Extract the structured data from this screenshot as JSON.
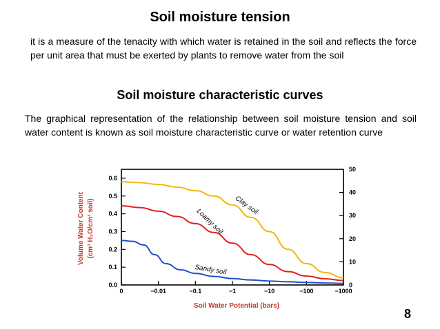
{
  "slide": {
    "title": "Soil moisture tension",
    "paragraph1": "it is a measure of the tenacity with which water is retained in the soil and reflects the force per unit area that must be exerted by plants to remove water from the soil",
    "subtitle": "Soil moisture characteristic curves",
    "paragraph2": "The graphical representation of the relationship between soil moisture tension and soil water content is known as soil moisture characteristic curve or water retention curve",
    "page_number": "8"
  },
  "chart_data": {
    "type": "line",
    "xlabel": "Soil Water Potential (bars)",
    "ylabel_line1": "Volume Water Content",
    "ylabel_line2": "(cm³ H₂O/cm³ soil)",
    "x_ticks": [
      "0",
      "−0.01",
      "−0.1",
      "−1",
      "−10",
      "−100",
      "−1000"
    ],
    "y_ticks": [
      "0.0",
      "0.1",
      "0.2",
      "0.3",
      "0.4",
      "0.5",
      "0.6"
    ],
    "ylim": [
      0,
      0.65
    ],
    "y2_ticks": [
      "0",
      "10",
      "20",
      "30",
      "40",
      "50"
    ],
    "y2lim": [
      0,
      50
    ],
    "x_index_range": [
      0,
      6
    ],
    "grid": false,
    "series": [
      {
        "name": "Clay soil",
        "color": "#f2b705",
        "points": [
          [
            0.0,
            0.58
          ],
          [
            0.5,
            0.575
          ],
          [
            1.0,
            0.565
          ],
          [
            1.5,
            0.55
          ],
          [
            2.0,
            0.53
          ],
          [
            2.5,
            0.5
          ],
          [
            3.0,
            0.45
          ],
          [
            3.5,
            0.38
          ],
          [
            4.0,
            0.3
          ],
          [
            4.5,
            0.2
          ],
          [
            5.0,
            0.12
          ],
          [
            5.5,
            0.07
          ],
          [
            6.0,
            0.04
          ]
        ]
      },
      {
        "name": "Loamy soil",
        "color": "#e02020",
        "points": [
          [
            0.0,
            0.445
          ],
          [
            0.5,
            0.435
          ],
          [
            1.0,
            0.415
          ],
          [
            1.5,
            0.385
          ],
          [
            2.0,
            0.345
          ],
          [
            2.5,
            0.295
          ],
          [
            3.0,
            0.235
          ],
          [
            3.5,
            0.17
          ],
          [
            4.0,
            0.115
          ],
          [
            4.5,
            0.075
          ],
          [
            5.0,
            0.05
          ],
          [
            5.5,
            0.035
          ],
          [
            6.0,
            0.025
          ]
        ]
      },
      {
        "name": "Sandy soil",
        "color": "#1f4fc6",
        "points": [
          [
            0.0,
            0.25
          ],
          [
            0.3,
            0.245
          ],
          [
            0.6,
            0.225
          ],
          [
            0.9,
            0.17
          ],
          [
            1.2,
            0.12
          ],
          [
            1.6,
            0.085
          ],
          [
            2.0,
            0.065
          ],
          [
            2.5,
            0.048
          ],
          [
            3.0,
            0.036
          ],
          [
            3.5,
            0.028
          ],
          [
            4.0,
            0.022
          ],
          [
            4.5,
            0.018
          ],
          [
            5.0,
            0.014
          ],
          [
            5.5,
            0.011
          ],
          [
            6.0,
            0.009
          ]
        ]
      }
    ]
  }
}
